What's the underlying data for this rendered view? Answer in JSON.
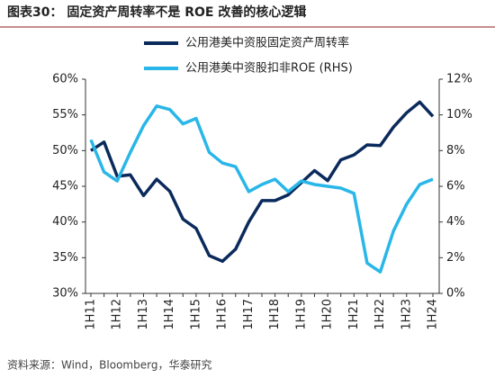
{
  "chart_data": {
    "type": "line",
    "title": "图表30：  固定资产周转率不是 ROE 改善的核心逻辑",
    "source": "资料来源：Wind，Bloomberg，华泰研究",
    "categories": [
      "1H11",
      null,
      "1H12",
      null,
      "1H13",
      null,
      "1H14",
      null,
      "1H15",
      null,
      "1H16",
      null,
      "1H17",
      null,
      "1H18",
      null,
      "1H19",
      null,
      "1H20",
      null,
      "1H21",
      null,
      "1H22",
      null,
      "1H23",
      null,
      "1H24"
    ],
    "series": [
      {
        "name": "公用港美中资股固定资产周转率",
        "color": "#0b2a5c",
        "axis": "y",
        "values": [
          50.0,
          51.2,
          46.4,
          46.6,
          43.7,
          46.0,
          44.3,
          40.4,
          39.1,
          35.3,
          34.5,
          36.2,
          40.0,
          43.0,
          43.0,
          43.8,
          45.5,
          47.2,
          45.8,
          48.7,
          49.4,
          50.8,
          50.7,
          53.3,
          55.3,
          56.8,
          54.8
        ]
      },
      {
        "name": "公用港美中资股扣非ROE (RHS)",
        "color": "#29b6e8",
        "axis": "y2",
        "values": [
          8.6,
          6.8,
          6.3,
          7.9,
          9.4,
          10.5,
          10.3,
          9.5,
          9.8,
          7.9,
          7.3,
          7.1,
          5.7,
          6.1,
          6.4,
          5.7,
          6.3,
          6.1,
          6.0,
          5.9,
          5.6,
          1.7,
          1.2,
          3.5,
          5.0,
          6.1,
          6.4
        ]
      }
    ],
    "ylim": [
      30,
      60
    ],
    "yticks": [
      {
        "value": 30,
        "label": "30%"
      },
      {
        "value": 35,
        "label": "35%"
      },
      {
        "value": 40,
        "label": "40%"
      },
      {
        "value": 45,
        "label": "45%"
      },
      {
        "value": 50,
        "label": "50%"
      },
      {
        "value": 55,
        "label": "55%"
      },
      {
        "value": 60,
        "label": "60%"
      }
    ],
    "y2lim": [
      0,
      12
    ],
    "y2ticks": [
      {
        "value": 0,
        "label": "0%"
      },
      {
        "value": 2,
        "label": "2%"
      },
      {
        "value": 4,
        "label": "4%"
      },
      {
        "value": 6,
        "label": "6%"
      },
      {
        "value": 8,
        "label": "8%"
      },
      {
        "value": 10,
        "label": "10%"
      },
      {
        "value": 12,
        "label": "12%"
      }
    ]
  }
}
